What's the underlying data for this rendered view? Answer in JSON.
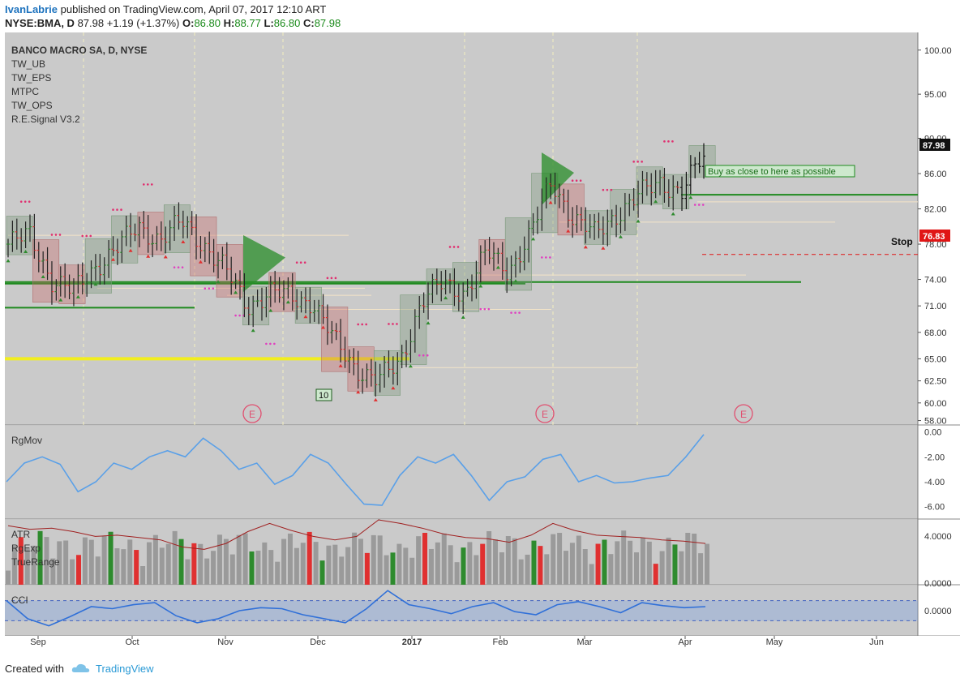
{
  "header": {
    "author": "IvanLabrie",
    "published_text": "published on TradingView.com, April 07, 2017 12:10 ART",
    "symbol": "NYSE:BMA, D",
    "last": "87.98",
    "change": "+1.19 (+1.37%)",
    "o_label": "O:",
    "o_value": "86.80",
    "h_label": "H:",
    "h_value": "88.77",
    "l_label": "L:",
    "l_value": "86.80",
    "c_label": "C:",
    "c_value": "87.98"
  },
  "legend": [
    "BANCO MACRO SA, D, NYSE",
    "TW_UB",
    "TW_EPS",
    "MTPC",
    "TW_OPS",
    "R.E.Signal V3.2"
  ],
  "annotations": {
    "buy_text": "Buy as close to here as possible",
    "stop_text": "Stop",
    "stop_price": "76.83",
    "last_price": "87.98",
    "count_badge": "10",
    "earnings_marker": "E"
  },
  "colors": {
    "panel_bg": "#cacaca",
    "up_bar": "#2e8b2e",
    "down_bar": "#e03030",
    "rgmov_line": "#5aa0e8",
    "atr_line": "#a02020",
    "cci_line": "#3070d8",
    "yellow_line": "#f2ee1e",
    "green_line": "#1f8a1f",
    "stop_red": "#e01515"
  },
  "footer": {
    "created_with": "Created with",
    "brand": "TradingView"
  },
  "chart_data": [
    {
      "type": "candlestick",
      "title": "BANCO MACRO SA, D, NYSE",
      "ylim": [
        57.5,
        102
      ],
      "y_ticks": [
        "100.00",
        "95.00",
        "90.00",
        "86.00",
        "82.00",
        "78.00",
        "74.00",
        "71.00",
        "68.00",
        "65.00",
        "62.50",
        "60.00",
        "58.00"
      ],
      "x_ticks": [
        "Sep",
        "Oct",
        "Nov",
        "Dec",
        "2017",
        "Feb",
        "Mar",
        "Apr",
        "May",
        "Jun"
      ],
      "approx_close_path": [
        [
          "Aug 25",
          78.0
        ],
        [
          "Sep 1",
          79.0
        ],
        [
          "Sep 8",
          74.0
        ],
        [
          "Sep 15",
          72.5
        ],
        [
          "Sep 22",
          75.5
        ],
        [
          "Sep 29",
          77.5
        ],
        [
          "Oct 6",
          80.0
        ],
        [
          "Oct 13",
          78.5
        ],
        [
          "Oct 20",
          80.5
        ],
        [
          "Oct 27",
          78.0
        ],
        [
          "Nov 3",
          75.0
        ],
        [
          "Nov 10",
          71.0
        ],
        [
          "Nov 17",
          72.5
        ],
        [
          "Nov 24",
          72.0
        ],
        [
          "Dec 1",
          71.5
        ],
        [
          "Dec 8",
          67.0
        ],
        [
          "Dec 15",
          64.0
        ],
        [
          "Dec 22",
          62.5
        ],
        [
          "Dec 29",
          64.5
        ],
        [
          "Jan 5",
          71.5
        ],
        [
          "Jan 12",
          73.5
        ],
        [
          "Jan 19",
          72.5
        ],
        [
          "Jan 26",
          77.0
        ],
        [
          "Feb 2",
          75.0
        ],
        [
          "Feb 9",
          79.0
        ],
        [
          "Feb 16",
          85.0
        ],
        [
          "Feb 23",
          81.0
        ],
        [
          "Mar 2",
          79.0
        ],
        [
          "Mar 9",
          81.5
        ],
        [
          "Mar 16",
          83.5
        ],
        [
          "Mar 23",
          85.0
        ],
        [
          "Mar 30",
          84.0
        ],
        [
          "Apr 7",
          87.98
        ]
      ],
      "last_values": {
        "open": 86.8,
        "high": 88.77,
        "low": 86.8,
        "close": 87.98
      },
      "levels": {
        "buy_zone": 83.6,
        "stop": 76.83,
        "support_1": 73.7,
        "yellow_support": 65.0,
        "old_support": 70.8
      },
      "indicators": [
        "TW_UB",
        "TW_EPS",
        "MTPC",
        "TW_OPS",
        "R.E.Signal V3.2"
      ]
    },
    {
      "type": "line",
      "title": "RgMov",
      "ylim": [
        -7,
        0.5
      ],
      "y_ticks": [
        "0.00",
        "-2.00",
        "-4.00",
        "-6.00"
      ],
      "values": [
        -4.0,
        -2.5,
        -2.0,
        -2.6,
        -4.8,
        -4.0,
        -2.5,
        -3.0,
        -2.0,
        -1.5,
        -2.0,
        -0.5,
        -1.5,
        -3.0,
        -2.5,
        -4.2,
        -3.5,
        -1.8,
        -2.5,
        -4.2,
        -5.8,
        -5.9,
        -3.5,
        -2.0,
        -2.5,
        -1.8,
        -3.5,
        -5.5,
        -4.0,
        -3.6,
        -2.2,
        -1.8,
        -4.0,
        -3.5,
        -4.1,
        -4.0,
        -3.7,
        -3.5,
        -2.0,
        -0.2
      ]
    },
    {
      "type": "bar",
      "title": "ATR / RgExp / TrueRange",
      "ylim": [
        0,
        5.5
      ],
      "y_ticks": [
        "4.0000",
        "0.0000"
      ],
      "atr_values": [
        5.0,
        4.7,
        4.8,
        4.5,
        4.1,
        4.2,
        4.0,
        3.8,
        3.2,
        3.0,
        3.5,
        4.5,
        5.2,
        4.6,
        4.1,
        3.8,
        4.1,
        5.5,
        5.2,
        4.8,
        4.3,
        4.0,
        3.9,
        3.6,
        4.2,
        5.2,
        4.6,
        4.2,
        4.1,
        4.0,
        3.8,
        3.7,
        3.5
      ]
    },
    {
      "type": "line",
      "title": "CCI",
      "ylim": [
        -250,
        250
      ],
      "y_ticks": [
        "0.0000"
      ],
      "values": [
        100,
        -80,
        -150,
        -60,
        40,
        20,
        60,
        80,
        -50,
        -120,
        -80,
        0,
        30,
        20,
        -40,
        -80,
        -120,
        20,
        200,
        60,
        20,
        -30,
        40,
        80,
        -10,
        -40,
        60,
        90,
        40,
        -20,
        80,
        50,
        30,
        40
      ]
    }
  ]
}
